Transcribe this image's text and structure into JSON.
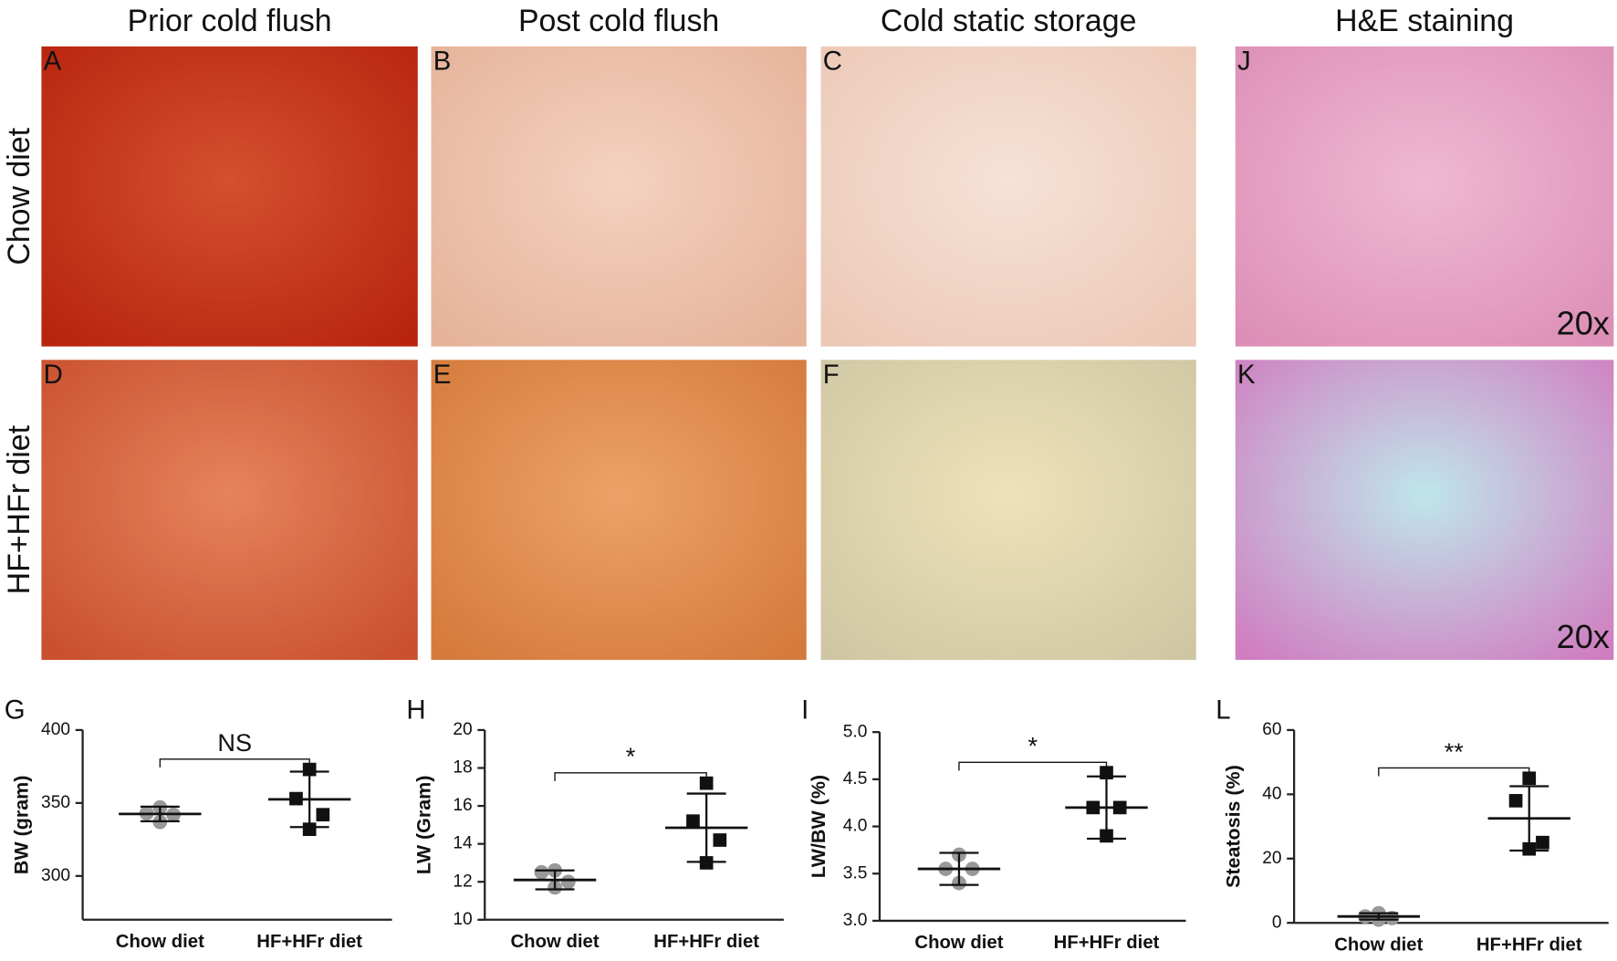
{
  "column_titles": [
    "Prior cold flush",
    "Post cold flush",
    "Cold static storage",
    "H&E staining"
  ],
  "row_labels": [
    "Chow diet",
    "HF+HFr diet"
  ],
  "photo_panels": [
    {
      "label": "A"
    },
    {
      "label": "B"
    },
    {
      "label": "C"
    },
    {
      "label": "J",
      "note": "20x"
    },
    {
      "label": "D"
    },
    {
      "label": "E"
    },
    {
      "label": "F"
    },
    {
      "label": "K",
      "note": "20x"
    }
  ],
  "chart_data": [
    {
      "type": "dotplot",
      "panel": "G",
      "ylabel": "BW (gram)",
      "annotation": "NS",
      "categories": [
        "Chow diet",
        "HF+HFr diet"
      ],
      "colors": [
        "#999999",
        "#111111"
      ],
      "points": [
        [
          347,
          343,
          342,
          337
        ],
        [
          373,
          353,
          342,
          332
        ]
      ],
      "means": [
        342.5,
        352.5
      ],
      "sd": [
        5,
        19
      ],
      "ylim": [
        270,
        400
      ],
      "yticks": [
        300,
        350,
        400
      ]
    },
    {
      "type": "dotplot",
      "panel": "H",
      "ylabel": "LW (Gram)",
      "annotation": "*",
      "categories": [
        "Chow diet",
        "HF+HFr diet"
      ],
      "colors": [
        "#999999",
        "#111111"
      ],
      "points": [
        [
          12.6,
          12.5,
          12.0,
          11.7
        ],
        [
          17.2,
          15.2,
          14.2,
          13.0
        ]
      ],
      "means": [
        12.1,
        14.85
      ],
      "sd": [
        0.5,
        1.8
      ],
      "ylim": [
        10,
        20
      ],
      "yticks": [
        10,
        12,
        14,
        16,
        18,
        20
      ]
    },
    {
      "type": "dotplot",
      "panel": "I",
      "ylabel": "LW/BW (%)",
      "annotation": "*",
      "categories": [
        "Chow diet",
        "HF+HFr diet"
      ],
      "colors": [
        "#999999",
        "#111111"
      ],
      "points": [
        [
          3.7,
          3.55,
          3.55,
          3.4
        ],
        [
          4.57,
          4.2,
          4.2,
          3.9
        ]
      ],
      "means": [
        3.55,
        4.2
      ],
      "sd": [
        0.17,
        0.33
      ],
      "ylim": [
        3,
        5
      ],
      "yticks": [
        {
          "value": 3,
          "label": "3.0"
        },
        3.5,
        {
          "value": 4,
          "label": "4.0"
        },
        4.5,
        {
          "value": 5,
          "label": "5.0"
        }
      ]
    },
    {
      "type": "dotplot",
      "panel": "L",
      "ylabel": "Steatosis (%)",
      "annotation": "**",
      "categories": [
        "Chow diet",
        "HF+HFr diet"
      ],
      "colors": [
        "#999999",
        "#111111"
      ],
      "points": [
        [
          3,
          2,
          1.5,
          1
        ],
        [
          45,
          38,
          25,
          23
        ]
      ],
      "means": [
        2,
        32.5
      ],
      "sd": [
        1,
        10
      ],
      "ylim": [
        0,
        60
      ],
      "yticks": [
        0,
        20,
        40,
        60
      ]
    }
  ]
}
